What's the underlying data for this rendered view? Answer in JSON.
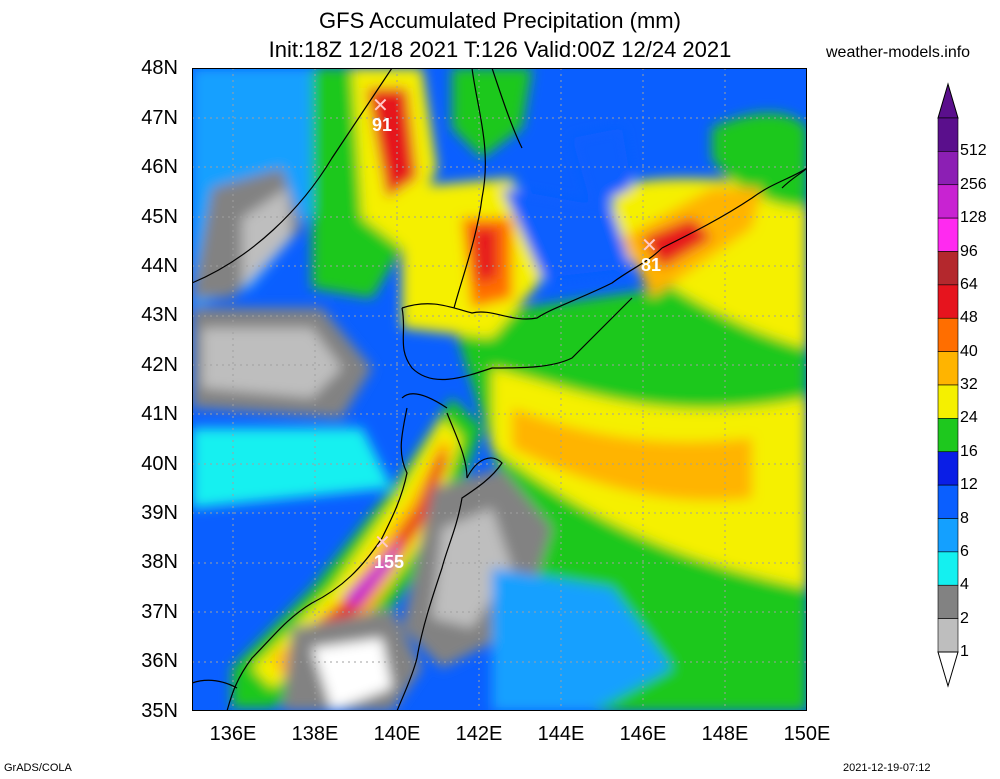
{
  "header": {
    "title_line1": "GFS Accumulated Precipitation (mm)",
    "title_line2": "Init:18Z 12/18 2021 T:126 Valid:00Z 12/24 2021",
    "website": "weather-models.info"
  },
  "map": {
    "lat_labels": [
      "48N",
      "47N",
      "46N",
      "45N",
      "44N",
      "43N",
      "42N",
      "41N",
      "40N",
      "39N",
      "38N",
      "37N",
      "36N",
      "35N"
    ],
    "lon_labels": [
      "136E",
      "138E",
      "140E",
      "142E",
      "144E",
      "146E",
      "148E",
      "150E"
    ],
    "markers": [
      {
        "symbol": "✕",
        "value": "91"
      },
      {
        "symbol": "✕",
        "value": "81"
      },
      {
        "symbol": "✕",
        "value": "155"
      }
    ]
  },
  "colorbar": {
    "levels": [
      "512",
      "256",
      "128",
      "96",
      "64",
      "48",
      "40",
      "32",
      "24",
      "16",
      "12",
      "8",
      "6",
      "4",
      "2",
      "1"
    ],
    "colors": [
      "#5a0f8c",
      "#8c1fb4",
      "#c823d2",
      "#ff2af0",
      "#b4282d",
      "#e6141e",
      "#ff6e00",
      "#ffb400",
      "#f5f000",
      "#1ec81e",
      "#0a1ee6",
      "#0a5fff",
      "#14a0ff",
      "#14f0f0",
      "#828282",
      "#bebebe"
    ]
  },
  "footer": {
    "left": "GrADS/COLA",
    "right": "2021-12-19-07:12"
  }
}
